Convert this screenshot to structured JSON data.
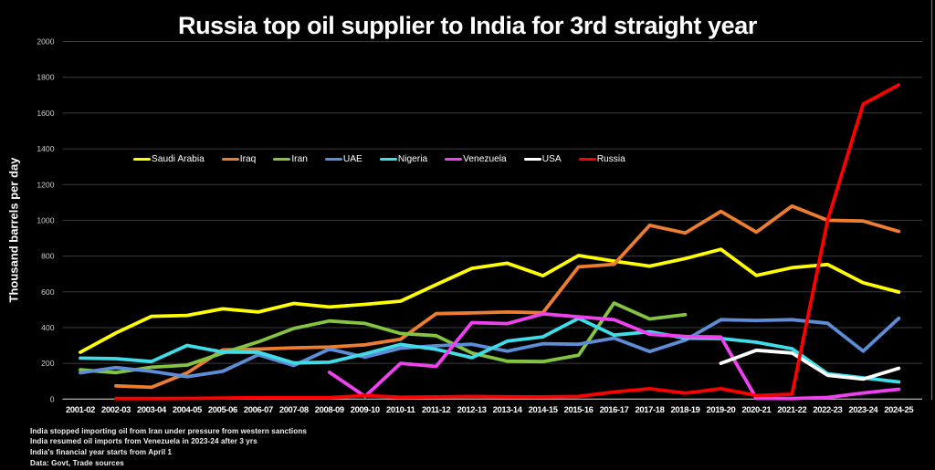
{
  "title": "Russia top oil supplier to India for 3rd straight year",
  "footnotes": [
    "India stopped importing oil from Iran under pressure from western sanctions",
    "India resumed oil imports from Venezuela in 2023-24 after 3 yrs",
    "India's financial year starts from April 1",
    "Data: Govt, Trade sources"
  ],
  "colors": {
    "background": "#000000",
    "gridline": "#3c3c3c",
    "zero_line": "#a3a3a3",
    "y_tick_label": "#cccccc",
    "x_tick_label": "#ffffff",
    "text": "#ffffff",
    "right_edge_line": "#999999"
  },
  "chart_data": {
    "type": "line",
    "title": "Russia top oil supplier to India for 3rd straight year",
    "xlabel": "",
    "ylabel": "Thousand barrels per day",
    "ylim": [
      0,
      2000
    ],
    "ytick_step": 200,
    "grid": true,
    "legend_position": "top-center-horizontal",
    "units": "thousand barrels per day",
    "categories": [
      "2001-02",
      "2002-03",
      "2003-04",
      "2004-05",
      "2005-06",
      "2006-07",
      "2007-08",
      "2008-09",
      "2009-10",
      "2010-11",
      "2011-12",
      "2012-13",
      "2013-14",
      "2014-15",
      "2015-16",
      "2016-17",
      "2017-18",
      "2018-19",
      "2019-20",
      "2020-21",
      "2021-22",
      "2022-23",
      "2023-24",
      "2024-25"
    ],
    "series": [
      {
        "name": "Saudi Arabia",
        "color": "#ffff00",
        "values": [
          262,
          370,
          463,
          468,
          505,
          487,
          535,
          515,
          530,
          548,
          640,
          731,
          760,
          690,
          803,
          772,
          744,
          786,
          838,
          692,
          735,
          753,
          651,
          599
        ]
      },
      {
        "name": "Iraq",
        "color": "#ed7d31",
        "values": [
          null,
          74,
          66,
          146,
          275,
          280,
          287,
          291,
          304,
          335,
          478,
          482,
          487,
          483,
          740,
          754,
          972,
          929,
          1050,
          934,
          1080,
          1000,
          996,
          938
        ]
      },
      {
        "name": "Iran",
        "color": "#84c441",
        "values": [
          164,
          148,
          178,
          190,
          258,
          320,
          395,
          437,
          423,
          367,
          355,
          258,
          212,
          210,
          245,
          537,
          448,
          472,
          null,
          null,
          null,
          null,
          null,
          null
        ]
      },
      {
        "name": "UAE",
        "color": "#5c8dd6",
        "values": [
          147,
          176,
          155,
          125,
          155,
          248,
          188,
          280,
          235,
          285,
          298,
          307,
          268,
          310,
          307,
          341,
          266,
          330,
          444,
          440,
          444,
          424,
          268,
          452
        ]
      },
      {
        "name": "Nigeria",
        "color": "#40dce8",
        "values": [
          229,
          226,
          210,
          300,
          263,
          262,
          202,
          206,
          253,
          306,
          278,
          232,
          324,
          348,
          452,
          358,
          377,
          341,
          339,
          318,
          282,
          142,
          119,
          96
        ]
      },
      {
        "name": "Venezuela",
        "color": "#f041f0",
        "values": [
          null,
          null,
          null,
          null,
          null,
          null,
          null,
          150,
          15,
          200,
          183,
          428,
          422,
          477,
          460,
          444,
          363,
          350,
          347,
          4,
          3,
          9,
          34,
          55
        ]
      },
      {
        "name": "USA",
        "color": "#ffffff",
        "values": [
          null,
          null,
          null,
          null,
          null,
          null,
          null,
          null,
          null,
          null,
          null,
          null,
          null,
          null,
          null,
          null,
          null,
          null,
          200,
          273,
          258,
          133,
          112,
          172
        ]
      },
      {
        "name": "Russia",
        "color": "#fe0000",
        "values": [
          null,
          3,
          3,
          4,
          6,
          8,
          8,
          8,
          20,
          10,
          12,
          15,
          13,
          12,
          15,
          40,
          58,
          33,
          58,
          20,
          27,
          1000,
          1650,
          1758
        ]
      }
    ]
  }
}
